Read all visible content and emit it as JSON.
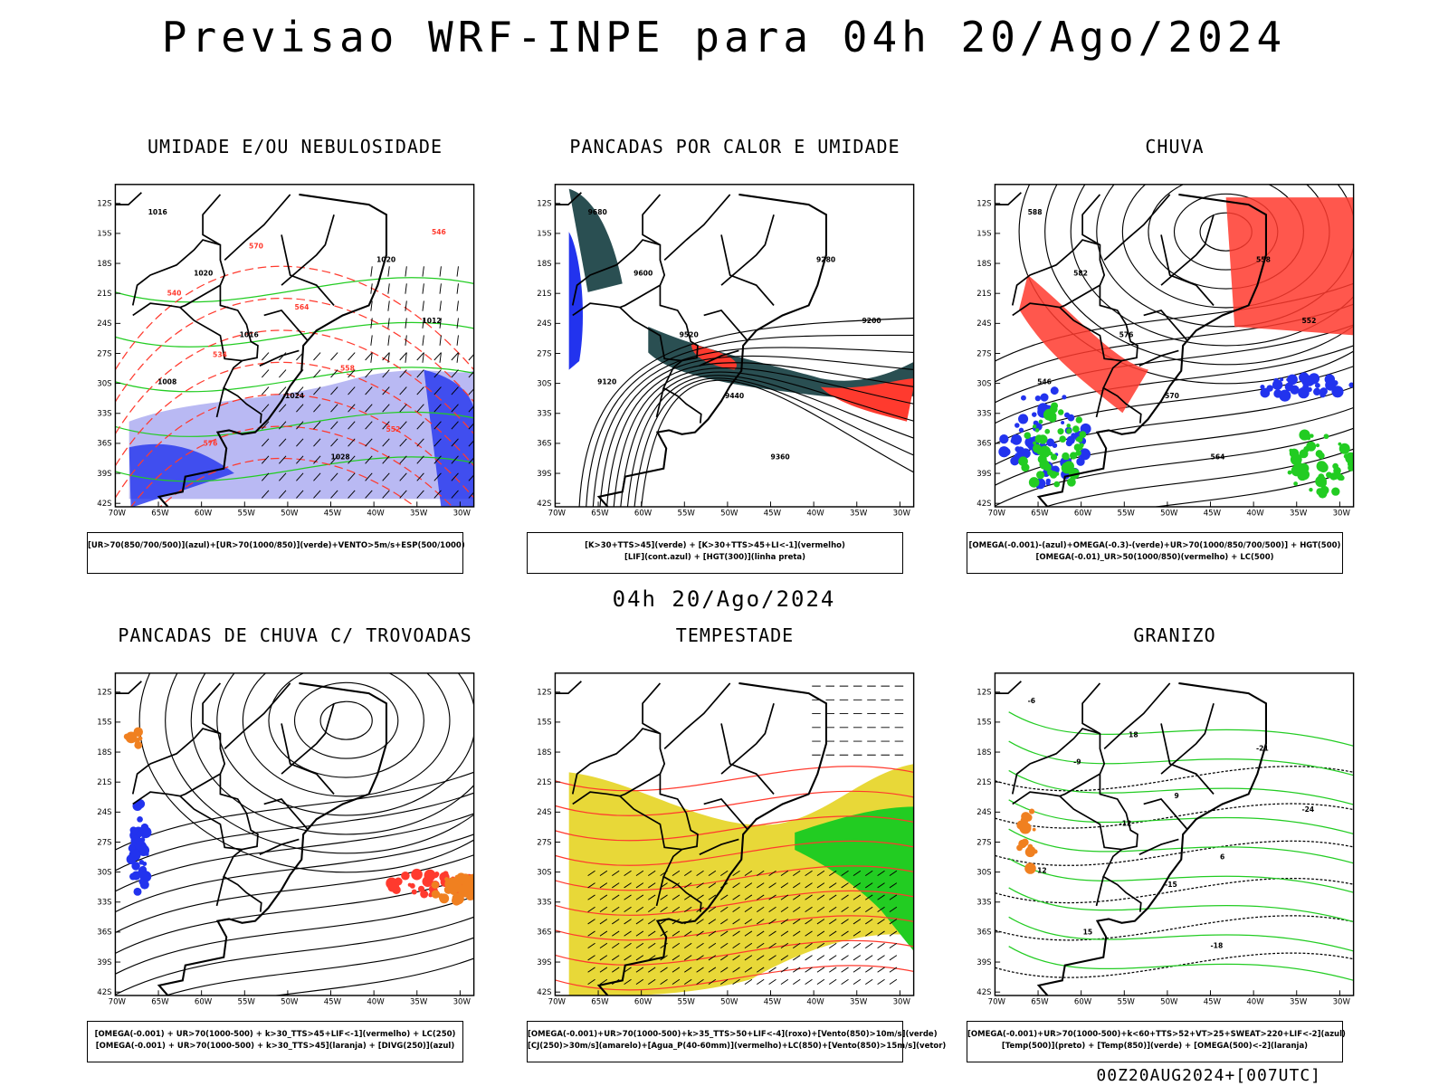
{
  "header": {
    "title": "Previsao WRF-INPE  para 04h 20/Ago/2024"
  },
  "middle": {
    "subtitle": "04h 20/Ago/2024"
  },
  "footer": {
    "run": "00Z20AUG2024+[007UTC]"
  },
  "axes": {
    "lat_labels": [
      "12S",
      "15S",
      "18S",
      "21S",
      "24S",
      "27S",
      "30S",
      "33S",
      "36S",
      "39S",
      "42S"
    ],
    "lon_labels": [
      "70W",
      "65W",
      "60W",
      "55W",
      "50W",
      "45W",
      "40W",
      "35W",
      "30W"
    ]
  },
  "panels": [
    {
      "id": "umidade",
      "title": "UMIDADE E/OU NEBULOSIDADE",
      "legend": [
        "[UR>70(850/700/500)](azul)+[UR>70(1000/850)](verde)+VENTO>5m/s+ESP(500/1000)"
      ],
      "labels": [
        "1016",
        "1020",
        "1016",
        "1024",
        "1028",
        "1020",
        "1012",
        "1008",
        "576",
        "570",
        "564",
        "558",
        "552",
        "546",
        "540",
        "534"
      ]
    },
    {
      "id": "pancadas_calor",
      "title": "PANCADAS POR CALOR E UMIDADE",
      "legend": [
        "[K>30+TTS>45](verde) + [K>30+TTS>45+LI<-1](vermelho)",
        "[LIF](cont.azul) + [HGT(300)](linha preta)"
      ],
      "labels": [
        "9680",
        "9600",
        "9520",
        "9440",
        "9360",
        "9280",
        "9200",
        "9120"
      ]
    },
    {
      "id": "chuva",
      "title": "CHUVA",
      "legend": [
        "[OMEGA(-0.001)-(azul)+OMEGA(-0.3)-(verde)+UR>70(1000/850/700/500)] + HGT(500)",
        "[OMEGA(-0.01)_UR>50(1000/850)(vermelho) + LC(500)"
      ],
      "labels": [
        "588",
        "582",
        "576",
        "570",
        "564",
        "558",
        "552",
        "546"
      ]
    },
    {
      "id": "trovoadas",
      "title": "PANCADAS DE CHUVA C/ TROVOADAS",
      "legend": [
        "[OMEGA(-0.001) + UR>70(1000-500) + k>30_TTS>45+LIF<-1](vermelho) + LC(250)",
        "[OMEGA(-0.001) + UR>70(1000-500) + k>30_TTS>45](laranja) + [DIVG(250)](azul)"
      ],
      "labels": []
    },
    {
      "id": "tempestade",
      "title": "TEMPESTADE",
      "legend": [
        "[OMEGA(-0.001)+UR>70(1000-500)+k>35_TTS>50+LIF<-4](roxo)+[Vento(850)>10m/s](verde)",
        "[CJ(250)>30m/s](amarelo)+[Agua_P(40-60mm)](vermelho)+LC(850)+[Vento(850)>15m/s](vetor)"
      ],
      "labels": []
    },
    {
      "id": "granizo",
      "title": "GRANIZO",
      "legend": [
        "[OMEGA(-0.001)+UR>70(1000-500)+k<60+TTS>52+VT>25+SWEAT>220+LIF<-2](azul)",
        "[Temp(500)](preto) + [Temp(850)](verde) + [OMEGA(500)<-2](laranja)"
      ],
      "labels": [
        "-6",
        "-9",
        "-12",
        "-15",
        "-18",
        "-21",
        "-24",
        "12",
        "15",
        "18",
        "9",
        "6"
      ]
    }
  ],
  "colors": {
    "red": "#ff3a2e",
    "green": "#22cc22",
    "blue": "#2233ee",
    "lightblue": "#a8a8f0",
    "darkteal": "#2a4f52",
    "yellow": "#e8d838",
    "orange": "#f08020"
  }
}
